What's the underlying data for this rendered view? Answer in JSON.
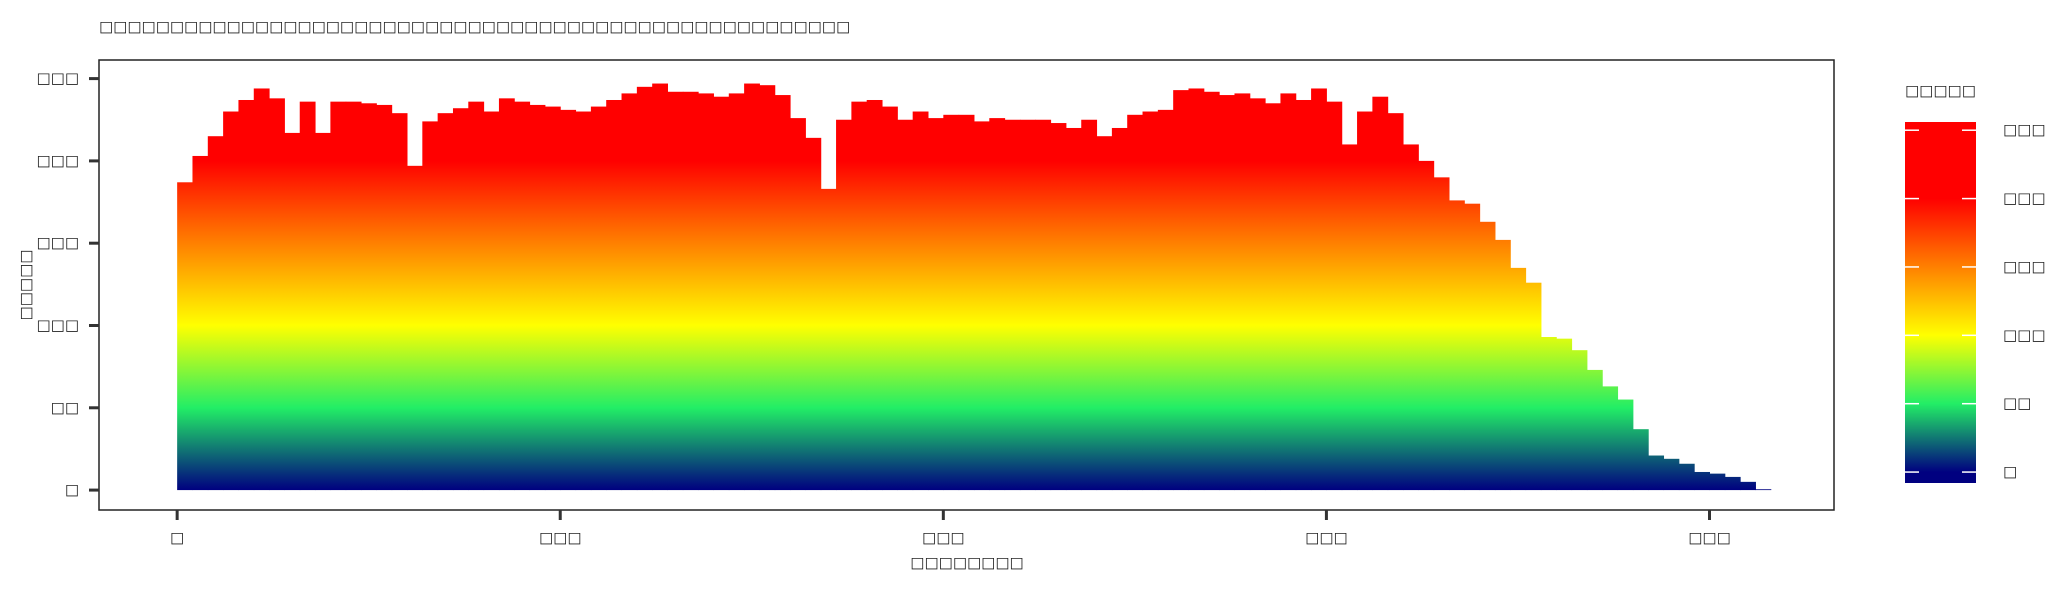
{
  "chart_data": {
    "type": "bar",
    "title": "□□□□□□□□□□□□□□□□□□□□□□□□□□□□□□□□□□□□□□□□□□□□□□□□□□□□□",
    "x_label": "□□□□□□□□",
    "y_label": "□□□□□",
    "legend_title": "□□□□□",
    "x": [
      0,
      4,
      8,
      12,
      16,
      20,
      24,
      28,
      32,
      36,
      40,
      44,
      48,
      52,
      56,
      60,
      64,
      68,
      72,
      76,
      80,
      84,
      88,
      92,
      96,
      100,
      104,
      108,
      112,
      116,
      120,
      124,
      128,
      132,
      136,
      140,
      144,
      148,
      152,
      156,
      160,
      164,
      168,
      172,
      176,
      180,
      184,
      188,
      192,
      196,
      200,
      204,
      208,
      212,
      216,
      220,
      224,
      228,
      232,
      236,
      240,
      244,
      248,
      252,
      256,
      260,
      264,
      268,
      272,
      276,
      280,
      284,
      288,
      292,
      296,
      300,
      304,
      308,
      312,
      316,
      320,
      324,
      328,
      332,
      336,
      340,
      344,
      348,
      352,
      356,
      360,
      364,
      368,
      372,
      376,
      380,
      384,
      388,
      392,
      396,
      400,
      404,
      408,
      412
    ],
    "values": [
      187,
      203,
      215,
      230,
      237,
      244,
      238,
      217,
      236,
      217,
      236,
      236,
      235,
      234,
      229,
      197,
      224,
      229,
      232,
      236,
      230,
      238,
      236,
      234,
      233,
      231,
      230,
      233,
      237,
      241,
      245,
      247,
      242,
      242,
      241,
      239,
      241,
      247,
      246,
      240,
      226,
      214,
      183,
      225,
      236,
      237,
      233,
      225,
      230,
      226,
      228,
      228,
      224,
      226,
      225,
      225,
      225,
      223,
      220,
      225,
      215,
      220,
      228,
      230,
      231,
      243,
      244,
      242,
      240,
      241,
      238,
      235,
      241,
      237,
      244,
      236,
      210,
      230,
      239,
      229,
      210,
      200,
      190,
      176,
      174,
      163,
      152,
      135,
      126,
      93,
      92,
      85,
      73,
      63,
      55,
      37,
      21,
      19,
      16,
      11,
      10,
      8,
      5,
      0.5
    ],
    "xlim": [
      -20.4,
      432.5
    ],
    "ylim": [
      -12.1,
      261.3
    ],
    "xticks": [
      {
        "value": 0,
        "label": "□"
      },
      {
        "value": 100,
        "label": "□□□"
      },
      {
        "value": 200,
        "label": "□□□"
      },
      {
        "value": 300,
        "label": "□□□"
      },
      {
        "value": 400,
        "label": "□□□"
      }
    ],
    "yticks": [
      {
        "value": 0,
        "label": "□"
      },
      {
        "value": 50,
        "label": "□□"
      },
      {
        "value": 100,
        "label": "□□□"
      },
      {
        "value": 150,
        "label": "□□□"
      },
      {
        "value": 200,
        "label": "□□□"
      },
      {
        "value": 250,
        "label": "□□□"
      }
    ],
    "color_stops": [
      [
        0,
        "#000080"
      ],
      [
        50,
        "#22ee66"
      ],
      [
        100,
        "#ffff00"
      ],
      [
        150,
        "#ff8000"
      ],
      [
        200,
        "#ff0000"
      ],
      [
        256,
        "#ff0000"
      ]
    ],
    "colorbar_lim": [
      -8,
      256
    ],
    "colorbar_ticks": [
      {
        "value": 0,
        "label": "□"
      },
      {
        "value": 50,
        "label": "□□"
      },
      {
        "value": 100,
        "label": "□□□"
      },
      {
        "value": 150,
        "label": "□□□"
      },
      {
        "value": 200,
        "label": "□□□"
      },
      {
        "value": 250,
        "label": "□□□"
      }
    ]
  }
}
